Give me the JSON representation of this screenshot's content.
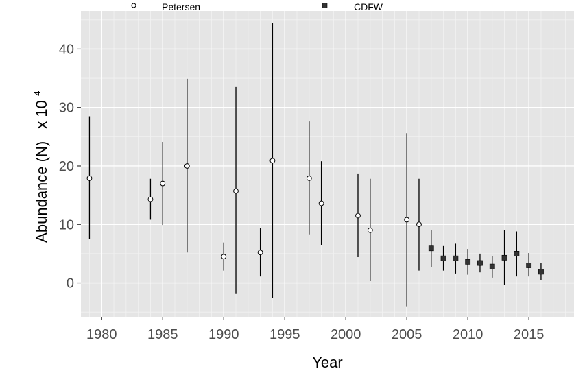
{
  "chart_data": {
    "type": "scatter",
    "title": "",
    "xlabel": "Year",
    "ylabel": "Abundance (N)",
    "ylabel_multiplier": "x 10",
    "ylabel_exponent": "4",
    "xlim": [
      1978.3,
      2018.7
    ],
    "ylim": [
      -5.8,
      46.5
    ],
    "xticks": [
      1980,
      1985,
      1990,
      1995,
      2000,
      2005,
      2010,
      2015
    ],
    "yticks": [
      0,
      10,
      20,
      30,
      40
    ],
    "grid": true,
    "legend_position": "top",
    "series": [
      {
        "name": "Petersen",
        "marker": "open-circle",
        "color": "#000000",
        "fill": "#ffffff",
        "points": [
          {
            "x": 1979,
            "y": 17.9,
            "lo": 7.5,
            "hi": 28.5
          },
          {
            "x": 1984,
            "y": 14.3,
            "lo": 10.8,
            "hi": 17.8
          },
          {
            "x": 1985,
            "y": 17.0,
            "lo": 9.9,
            "hi": 24.1
          },
          {
            "x": 1987,
            "y": 20.0,
            "lo": 5.2,
            "hi": 34.9
          },
          {
            "x": 1990,
            "y": 4.5,
            "lo": 2.1,
            "hi": 6.9
          },
          {
            "x": 1991,
            "y": 15.7,
            "lo": -1.9,
            "hi": 33.5
          },
          {
            "x": 1993,
            "y": 5.2,
            "lo": 1.1,
            "hi": 9.4
          },
          {
            "x": 1994,
            "y": 20.9,
            "lo": -2.6,
            "hi": 44.5
          },
          {
            "x": 1997,
            "y": 17.9,
            "lo": 8.3,
            "hi": 27.6
          },
          {
            "x": 1998,
            "y": 13.6,
            "lo": 6.5,
            "hi": 20.8
          },
          {
            "x": 2001,
            "y": 11.5,
            "lo": 4.4,
            "hi": 18.6
          },
          {
            "x": 2002,
            "y": 9.0,
            "lo": 0.3,
            "hi": 17.8
          },
          {
            "x": 2005,
            "y": 10.8,
            "lo": -4.0,
            "hi": 25.6
          },
          {
            "x": 2006,
            "y": 10.0,
            "lo": 2.1,
            "hi": 17.8
          }
        ]
      },
      {
        "name": "CDFW",
        "marker": "filled-square",
        "color": "#000000",
        "fill": "#333333",
        "points": [
          {
            "x": 2007,
            "y": 5.9,
            "lo": 2.7,
            "hi": 9.0
          },
          {
            "x": 2008,
            "y": 4.2,
            "lo": 2.1,
            "hi": 6.3
          },
          {
            "x": 2009,
            "y": 4.2,
            "lo": 1.6,
            "hi": 6.7
          },
          {
            "x": 2010,
            "y": 3.6,
            "lo": 1.4,
            "hi": 5.8
          },
          {
            "x": 2011,
            "y": 3.4,
            "lo": 1.8,
            "hi": 5.0
          },
          {
            "x": 2012,
            "y": 2.8,
            "lo": 0.9,
            "hi": 4.6
          },
          {
            "x": 2013,
            "y": 4.3,
            "lo": -0.4,
            "hi": 9.0
          },
          {
            "x": 2014,
            "y": 5.0,
            "lo": 1.1,
            "hi": 8.8
          },
          {
            "x": 2015,
            "y": 3.0,
            "lo": 1.1,
            "hi": 5.1
          },
          {
            "x": 2016,
            "y": 1.9,
            "lo": 0.5,
            "hi": 3.4
          }
        ]
      }
    ]
  },
  "colors": {
    "panel_background": "#e5e5e5",
    "grid_major": "#ffffff",
    "grid_minor": "#f2f2f2",
    "tick_label": "#4d4d4d",
    "page_background": "#ffffff"
  }
}
